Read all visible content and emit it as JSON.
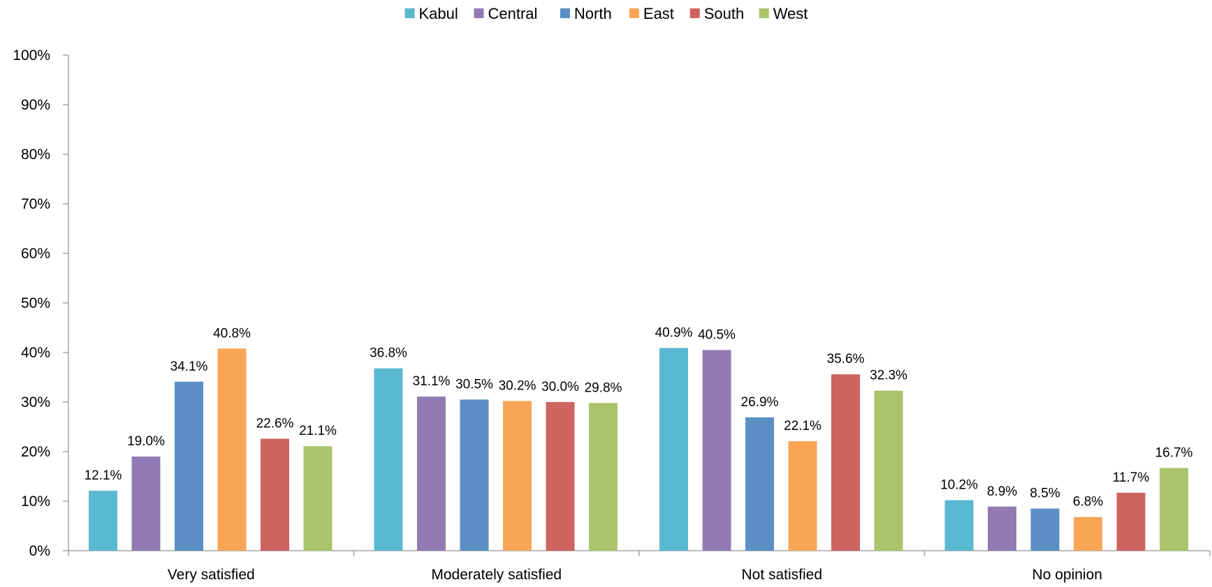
{
  "chart_data": {
    "type": "bar",
    "title": "",
    "xlabel": "",
    "ylabel": "",
    "ylim": [
      0,
      100
    ],
    "yticks": [
      0,
      10,
      20,
      30,
      40,
      50,
      60,
      70,
      80,
      90,
      100
    ],
    "ytick_labels": [
      "0%",
      "10%",
      "20%",
      "30%",
      "40%",
      "50%",
      "60%",
      "70%",
      "80%",
      "90%",
      "100%"
    ],
    "categories": [
      "Very satisfied",
      "Moderately satisfied",
      "Not satisfied",
      "No opinion"
    ],
    "series": [
      {
        "name": "Kabul",
        "color": "#5bb8d1",
        "values": [
          12.1,
          36.8,
          40.9,
          10.2
        ],
        "labels": [
          "12.1%",
          "36.8%",
          "40.9%",
          "10.2%"
        ]
      },
      {
        "name": "Central",
        "color": "#927bb2",
        "values": [
          19.0,
          31.1,
          40.5,
          8.9
        ],
        "labels": [
          "19.0%",
          "31.1%",
          "40.5%",
          "8.9%"
        ]
      },
      {
        "name": "North",
        "color": "#5b8ec4",
        "values": [
          34.1,
          30.5,
          26.9,
          8.5
        ],
        "labels": [
          "34.1%",
          "30.5%",
          "26.9%",
          "8.5%"
        ]
      },
      {
        "name": "East",
        "color": "#f8a655",
        "values": [
          40.8,
          30.2,
          22.1,
          6.8
        ],
        "labels": [
          "40.8%",
          "30.2%",
          "22.1%",
          "6.8%"
        ]
      },
      {
        "name": "South",
        "color": "#cd6460",
        "values": [
          22.6,
          30.0,
          35.6,
          11.7
        ],
        "labels": [
          "22.6%",
          "30.0%",
          "35.6%",
          "11.7%"
        ]
      },
      {
        "name": "West",
        "color": "#a9c46a",
        "values": [
          21.1,
          29.8,
          32.3,
          16.7
        ],
        "labels": [
          "21.1%",
          "29.8%",
          "32.3%",
          "16.7%"
        ]
      }
    ],
    "grid": false,
    "legend": "top-center",
    "axis_color": "#a6a6a6"
  }
}
